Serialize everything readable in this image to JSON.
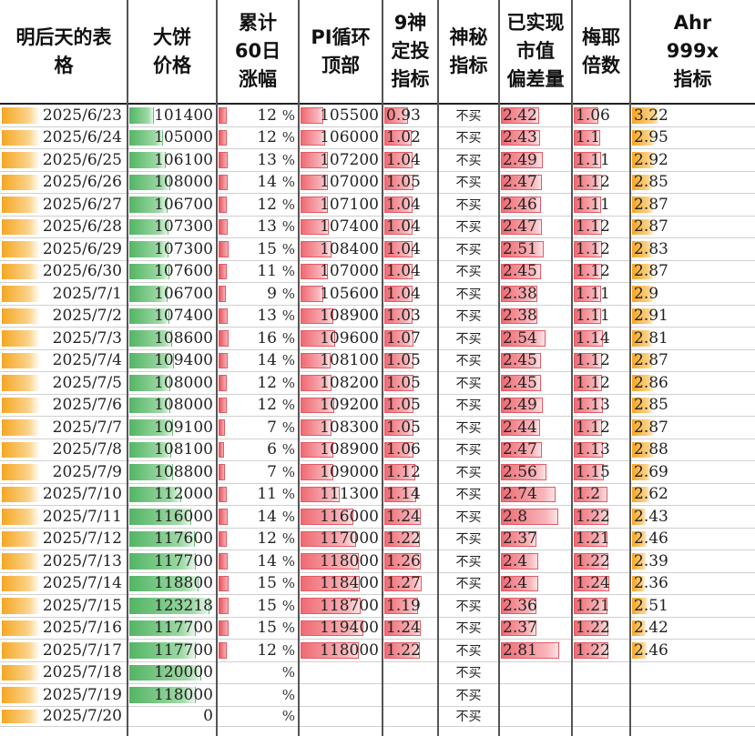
{
  "headers": [
    "明后天的表\n格",
    "大饼\n价格",
    "累计\n60日\n涨幅",
    "PI循环\n顶部",
    "9神\n定投\n指标",
    "神秘\n指标",
    "已实现\n市值\n偏差量",
    "梅耶\n倍数",
    "Ahr\n999x\n指标"
  ],
  "percent_symbol": "%",
  "rows": [
    {
      "date": "2025/6/23",
      "price": "101400",
      "rise": "12",
      "pi": "105500",
      "nine": "0.93",
      "mystery": "不买",
      "mvrv": "2.42",
      "mayer": "1.06",
      "ahr": "3.22"
    },
    {
      "date": "2025/6/24",
      "price": "105000",
      "rise": "12",
      "pi": "106000",
      "nine": "1.02",
      "mystery": "不买",
      "mvrv": "2.43",
      "mayer": "1.1",
      "ahr": "2.95"
    },
    {
      "date": "2025/6/25",
      "price": "106100",
      "rise": "13",
      "pi": "107200",
      "nine": "1.04",
      "mystery": "不买",
      "mvrv": "2.49",
      "mayer": "1.11",
      "ahr": "2.92"
    },
    {
      "date": "2025/6/26",
      "price": "108000",
      "rise": "14",
      "pi": "107000",
      "nine": "1.05",
      "mystery": "不买",
      "mvrv": "2.47",
      "mayer": "1.12",
      "ahr": "2.85"
    },
    {
      "date": "2025/6/27",
      "price": "106700",
      "rise": "12",
      "pi": "107100",
      "nine": "1.04",
      "mystery": "不买",
      "mvrv": "2.46",
      "mayer": "1.11",
      "ahr": "2.87"
    },
    {
      "date": "2025/6/28",
      "price": "107300",
      "rise": "13",
      "pi": "107400",
      "nine": "1.04",
      "mystery": "不买",
      "mvrv": "2.47",
      "mayer": "1.12",
      "ahr": "2.87"
    },
    {
      "date": "2025/6/29",
      "price": "107300",
      "rise": "15",
      "pi": "108400",
      "nine": "1.04",
      "mystery": "不买",
      "mvrv": "2.51",
      "mayer": "1.12",
      "ahr": "2.83"
    },
    {
      "date": "2025/6/30",
      "price": "107600",
      "rise": "11",
      "pi": "107000",
      "nine": "1.04",
      "mystery": "不买",
      "mvrv": "2.45",
      "mayer": "1.12",
      "ahr": "2.87"
    },
    {
      "date": "2025/7/1",
      "price": "106700",
      "rise": "9",
      "pi": "105600",
      "nine": "1.04",
      "mystery": "不买",
      "mvrv": "2.38",
      "mayer": "1.11",
      "ahr": "2.9"
    },
    {
      "date": "2025/7/2",
      "price": "107400",
      "rise": "13",
      "pi": "108900",
      "nine": "1.03",
      "mystery": "不买",
      "mvrv": "2.38",
      "mayer": "1.11",
      "ahr": "2.91"
    },
    {
      "date": "2025/7/3",
      "price": "108600",
      "rise": "16",
      "pi": "109600",
      "nine": "1.07",
      "mystery": "不买",
      "mvrv": "2.54",
      "mayer": "1.14",
      "ahr": "2.81"
    },
    {
      "date": "2025/7/4",
      "price": "109400",
      "rise": "14",
      "pi": "108100",
      "nine": "1.05",
      "mystery": "不买",
      "mvrv": "2.45",
      "mayer": "1.12",
      "ahr": "2.87"
    },
    {
      "date": "2025/7/5",
      "price": "108000",
      "rise": "12",
      "pi": "108200",
      "nine": "1.05",
      "mystery": "不买",
      "mvrv": "2.45",
      "mayer": "1.12",
      "ahr": "2.86"
    },
    {
      "date": "2025/7/6",
      "price": "108000",
      "rise": "12",
      "pi": "109200",
      "nine": "1.05",
      "mystery": "不买",
      "mvrv": "2.49",
      "mayer": "1.13",
      "ahr": "2.85"
    },
    {
      "date": "2025/7/7",
      "price": "109100",
      "rise": "7",
      "pi": "108300",
      "nine": "1.05",
      "mystery": "不买",
      "mvrv": "2.44",
      "mayer": "1.12",
      "ahr": "2.87"
    },
    {
      "date": "2025/7/8",
      "price": "108100",
      "rise": "6",
      "pi": "108900",
      "nine": "1.06",
      "mystery": "不买",
      "mvrv": "2.47",
      "mayer": "1.13",
      "ahr": "2.88"
    },
    {
      "date": "2025/7/9",
      "price": "108800",
      "rise": "7",
      "pi": "109000",
      "nine": "1.12",
      "mystery": "不买",
      "mvrv": "2.56",
      "mayer": "1.15",
      "ahr": "2.69"
    },
    {
      "date": "2025/7/10",
      "price": "112000",
      "rise": "11",
      "pi": "111300",
      "nine": "1.14",
      "mystery": "不买",
      "mvrv": "2.74",
      "mayer": "1.2",
      "ahr": "2.62"
    },
    {
      "date": "2025/7/11",
      "price": "116000",
      "rise": "14",
      "pi": "116000",
      "nine": "1.24",
      "mystery": "不买",
      "mvrv": "2.8",
      "mayer": "1.22",
      "ahr": "2.43"
    },
    {
      "date": "2025/7/12",
      "price": "117600",
      "rise": "12",
      "pi": "117000",
      "nine": "1.22",
      "mystery": "不买",
      "mvrv": "2.37",
      "mayer": "1.21",
      "ahr": "2.46"
    },
    {
      "date": "2025/7/13",
      "price": "117700",
      "rise": "14",
      "pi": "118000",
      "nine": "1.26",
      "mystery": "不买",
      "mvrv": "2.4",
      "mayer": "1.22",
      "ahr": "2.39"
    },
    {
      "date": "2025/7/14",
      "price": "118800",
      "rise": "15",
      "pi": "118400",
      "nine": "1.27",
      "mystery": "不买",
      "mvrv": "2.4",
      "mayer": "1.24",
      "ahr": "2.36"
    },
    {
      "date": "2025/7/15",
      "price": "123218",
      "rise": "15",
      "pi": "118700",
      "nine": "1.19",
      "mystery": "不买",
      "mvrv": "2.36",
      "mayer": "1.21",
      "ahr": "2.51"
    },
    {
      "date": "2025/7/16",
      "price": "117700",
      "rise": "15",
      "pi": "119400",
      "nine": "1.24",
      "mystery": "不买",
      "mvrv": "2.37",
      "mayer": "1.22",
      "ahr": "2.42"
    },
    {
      "date": "2025/7/17",
      "price": "117700",
      "rise": "12",
      "pi": "118000",
      "nine": "1.22",
      "mystery": "不买",
      "mvrv": "2.81",
      "mayer": "1.22",
      "ahr": "2.46"
    },
    {
      "date": "2025/7/18",
      "price": "120000",
      "rise": "",
      "pi": "",
      "nine": "",
      "mystery": "不买",
      "mvrv": "",
      "mayer": "",
      "ahr": ""
    },
    {
      "date": "2025/7/19",
      "price": "118000",
      "rise": "",
      "pi": "",
      "nine": "",
      "mystery": "不买",
      "mvrv": "",
      "mayer": "",
      "ahr": ""
    },
    {
      "date": "2025/7/20",
      "price": "0",
      "rise": "",
      "pi": "",
      "nine": "",
      "mystery": "不买",
      "mvrv": "",
      "mayer": "",
      "ahr": ""
    }
  ],
  "colors": {
    "date_bar": "#f5a623",
    "price_bar": "#52b563",
    "red_bar": "#ef6a73",
    "ahr_bar": "#f5a623"
  }
}
